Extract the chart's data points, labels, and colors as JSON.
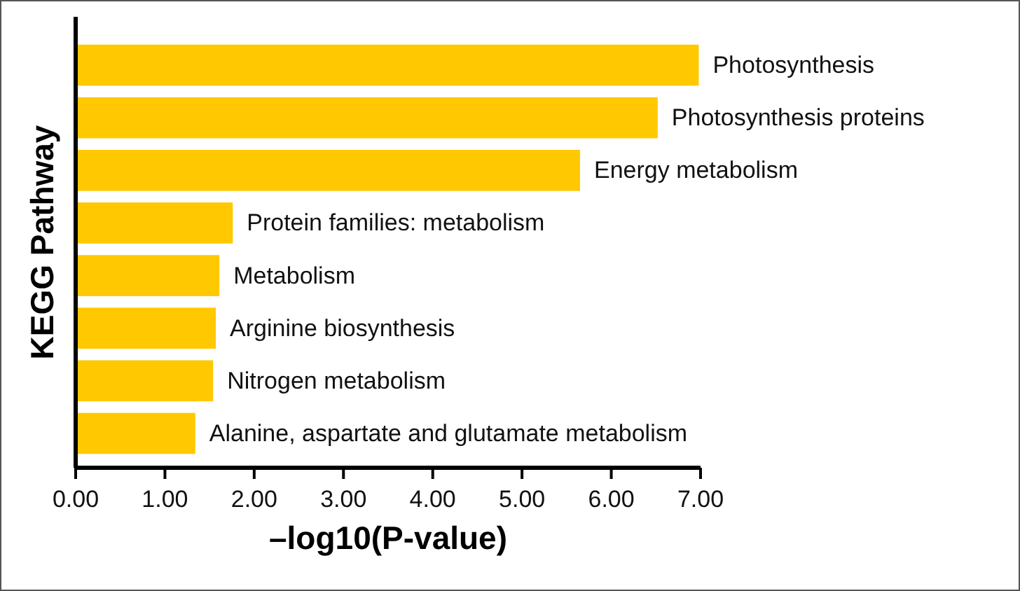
{
  "chart_data": {
    "type": "bar",
    "orientation": "horizontal",
    "xlabel": "–log10(P-value)",
    "ylabel": "KEGG Pathway",
    "categories": [
      "Photosynthesis",
      "Photosynthesis proteins",
      "Energy metabolism",
      "Protein families: metabolism",
      "Metabolism",
      "Arginine biosynthesis",
      "Nitrogen metabolism",
      "Alanine, aspartate and glutamate metabolism"
    ],
    "values": [
      6.98,
      6.52,
      5.65,
      1.76,
      1.61,
      1.57,
      1.54,
      1.34
    ],
    "color": "#ffc800",
    "xlim": [
      0,
      7
    ],
    "xticks": [
      {
        "value": 0,
        "label": "0.00"
      },
      {
        "value": 1,
        "label": "1.00"
      },
      {
        "value": 2,
        "label": "2.00"
      },
      {
        "value": 3,
        "label": "3.00"
      },
      {
        "value": 4,
        "label": "4.00"
      },
      {
        "value": 5,
        "label": "5.00"
      },
      {
        "value": 6,
        "label": "6.00"
      },
      {
        "value": 7,
        "label": "7.00"
      }
    ],
    "grid": false
  }
}
